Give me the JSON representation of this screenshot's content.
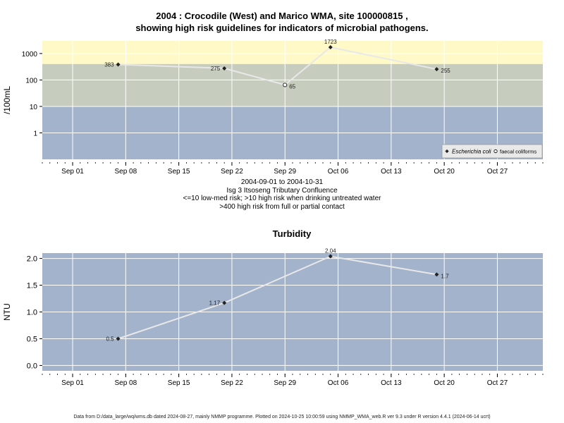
{
  "top_title": {
    "line1": "2004 : Crocodile (West) and Marico WMA, site 100000815 ,",
    "line2": "showing high risk guidelines for indicators of microbial pathogens."
  },
  "top_caption": {
    "range": "2004-09-01 to 2004-10-31",
    "site": "Isg 3 Itsoseng Tributary Confluence",
    "note1": "<=10 low-med risk; >10 high risk when drinking untreated water",
    "note2": ">400 high risk from full or partial contact"
  },
  "footer": "Data from D:/data_large/wq/wms.db dated 2024-08-27, mainly NMMP programme. Plotted on 2024-10-25 10:00:59 using NMMP_WMA_web.R ver 9.3 under R version 4.4.1 (2024-06-14 ucrt)",
  "colors": {
    "band_high": "#fff9c8",
    "band_mid": "#c6ccbe",
    "band_low": "#a2b3cb",
    "line": "#e8e8e8",
    "grid": "#ffffff"
  },
  "chart_data": [
    {
      "type": "line",
      "title": "",
      "ylabel": "/100mL",
      "y_scale": "log10",
      "ylim": [
        0.1,
        3000
      ],
      "y_ticks": [
        1,
        10,
        100,
        1000
      ],
      "y_tick_labels": [
        "1",
        "10",
        "100",
        "1000"
      ],
      "xlim": [
        "2004-08-28",
        "2004-11-02"
      ],
      "x_ticks": [
        "2004-09-01",
        "2004-09-08",
        "2004-09-15",
        "2004-09-22",
        "2004-09-29",
        "2004-10-06",
        "2004-10-13",
        "2004-10-20",
        "2004-10-27"
      ],
      "x_tick_labels": [
        "Sep 01",
        "Sep 08",
        "Sep 15",
        "Sep 22",
        "Sep 29",
        "Oct 06",
        "Oct 13",
        "Oct 20",
        "Oct 27"
      ],
      "bands": [
        {
          "from": 400,
          "to": 3000,
          "color": "#fff9c8"
        },
        {
          "from": 10,
          "to": 400,
          "color": "#c6ccbe"
        },
        {
          "from": 0.1,
          "to": 10,
          "color": "#a2b3cb"
        }
      ],
      "series": [
        {
          "name": "Escherichia coli",
          "marker": "diamond",
          "x": [
            "2004-09-07",
            "2004-09-21",
            "2004-10-05",
            "2004-10-19"
          ],
          "y": [
            383,
            275,
            1723,
            255
          ],
          "labels": [
            "383",
            "275",
            "1723",
            "255"
          ]
        },
        {
          "name": "faecal coliforms",
          "marker": "circle",
          "x": [
            "2004-09-29"
          ],
          "y": [
            65
          ],
          "labels": [
            "65"
          ]
        }
      ],
      "line_order_x": [
        "2004-09-07",
        "2004-09-21",
        "2004-09-29",
        "2004-10-05",
        "2004-10-19"
      ],
      "line_order_y": [
        383,
        275,
        65,
        1723,
        255
      ],
      "legend_position": "bottom-right",
      "grid": true
    },
    {
      "type": "line",
      "title": "Turbidity",
      "ylabel": "NTU",
      "ylim": [
        -0.1,
        2.1
      ],
      "y_ticks": [
        0,
        0.5,
        1,
        1.5,
        2
      ],
      "y_tick_labels": [
        "0.0",
        "0.5",
        "1.0",
        "1.5",
        "2.0"
      ],
      "xlim": [
        "2004-08-28",
        "2004-11-02"
      ],
      "x_ticks": [
        "2004-09-01",
        "2004-09-08",
        "2004-09-15",
        "2004-09-22",
        "2004-09-29",
        "2004-10-06",
        "2004-10-13",
        "2004-10-20",
        "2004-10-27"
      ],
      "x_tick_labels": [
        "Sep 01",
        "Sep 08",
        "Sep 15",
        "Sep 22",
        "Sep 29",
        "Oct 06",
        "Oct 13",
        "Oct 20",
        "Oct 27"
      ],
      "series": [
        {
          "name": "",
          "marker": "diamond",
          "x": [
            "2004-09-07",
            "2004-09-21",
            "2004-10-05",
            "2004-10-19"
          ],
          "y": [
            0.5,
            1.17,
            2.04,
            1.7
          ],
          "labels": [
            "0.5",
            "1.17",
            "2.04",
            "1.7"
          ]
        }
      ],
      "grid": true
    }
  ]
}
